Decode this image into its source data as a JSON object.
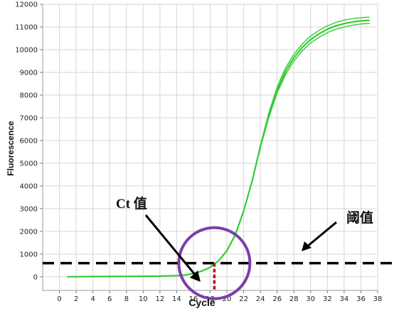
{
  "chart_data": {
    "type": "line",
    "xlabel": "Cycle",
    "ylabel": "Fluorescence",
    "xlim": [
      -2,
      38
    ],
    "ylim": [
      -600,
      12000
    ],
    "x_ticks": [
      0,
      2,
      4,
      6,
      8,
      10,
      12,
      14,
      16,
      18,
      20,
      22,
      24,
      26,
      28,
      30,
      32,
      34,
      36,
      38
    ],
    "y_ticks": [
      0,
      1000,
      2000,
      3000,
      4000,
      5000,
      6000,
      7000,
      8000,
      9000,
      10000,
      11000,
      12000
    ],
    "grid": true,
    "series": [
      {
        "color": "#33cc33",
        "x": [
          1,
          4,
          8,
          12,
          14,
          15,
          16,
          17,
          18,
          19,
          20,
          21,
          22,
          23,
          24,
          25,
          26,
          27,
          28,
          29,
          30,
          31,
          32,
          33,
          34,
          35,
          36,
          37
        ],
        "y": [
          0,
          10,
          20,
          30,
          50,
          80,
          140,
          250,
          420,
          700,
          1150,
          1850,
          2900,
          4200,
          5700,
          7000,
          8100,
          8900,
          9500,
          9950,
          10300,
          10550,
          10750,
          10900,
          11000,
          11080,
          11130,
          11160
        ]
      },
      {
        "color": "#33cc33",
        "x": [
          1,
          4,
          8,
          12,
          14,
          15,
          16,
          17,
          18,
          19,
          20,
          21,
          22,
          23,
          24,
          25,
          26,
          27,
          28,
          29,
          30,
          31,
          32,
          33,
          34,
          35,
          36,
          37
        ],
        "y": [
          0,
          10,
          20,
          30,
          50,
          80,
          140,
          250,
          420,
          700,
          1150,
          1850,
          2900,
          4200,
          5750,
          7100,
          8200,
          9050,
          9650,
          10100,
          10450,
          10700,
          10900,
          11050,
          11150,
          11220,
          11270,
          11290
        ]
      },
      {
        "color": "#33cc33",
        "x": [
          1,
          4,
          8,
          12,
          14,
          15,
          16,
          17,
          18,
          19,
          20,
          21,
          22,
          23,
          24,
          25,
          26,
          27,
          28,
          29,
          30,
          31,
          32,
          33,
          34,
          35,
          36,
          37
        ],
        "y": [
          0,
          10,
          20,
          30,
          50,
          80,
          140,
          250,
          420,
          700,
          1150,
          1850,
          2900,
          4200,
          5800,
          7200,
          8350,
          9200,
          9800,
          10250,
          10600,
          10850,
          11050,
          11200,
          11300,
          11370,
          11410,
          11430
        ]
      }
    ],
    "threshold": {
      "y": 600,
      "color": "#000000"
    },
    "ct_marker": {
      "x": 18.5,
      "color": "#cc0000"
    },
    "circle": {
      "cx": 18.5,
      "cy": 600,
      "color": "#7b3fa8"
    },
    "annotations": {
      "ct_label": "Ct 值",
      "threshold_label": "阈值"
    }
  }
}
